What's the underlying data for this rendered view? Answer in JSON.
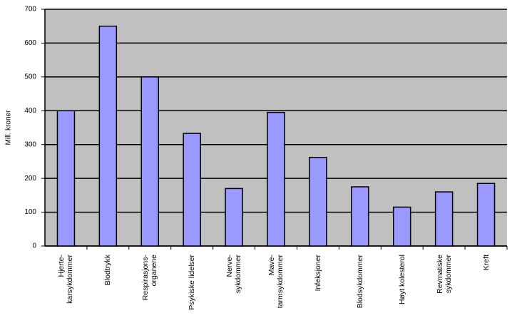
{
  "chart_data": {
    "type": "bar",
    "y_label": "Mill. kroner",
    "categories": [
      "Hjerte-\nkarsykdommer",
      "Blodtrykk",
      "Respirasjons-\norganene",
      "Psykiske lidelser",
      "Nerve-\nsykdommer",
      "Mave-\ntarmsykdommer",
      "Infeksjoner",
      "Blodsykdommer",
      "Høyt kolesterol",
      "Revmatiske\nsykdommer",
      "Kreft"
    ],
    "values": [
      400,
      650,
      500,
      333,
      170,
      395,
      262,
      175,
      115,
      160,
      185
    ],
    "color": "#9999ff",
    "ylim": [
      0,
      700
    ],
    "yticks": [
      0,
      100,
      200,
      300,
      400,
      500,
      600,
      700
    ],
    "grid": true
  }
}
